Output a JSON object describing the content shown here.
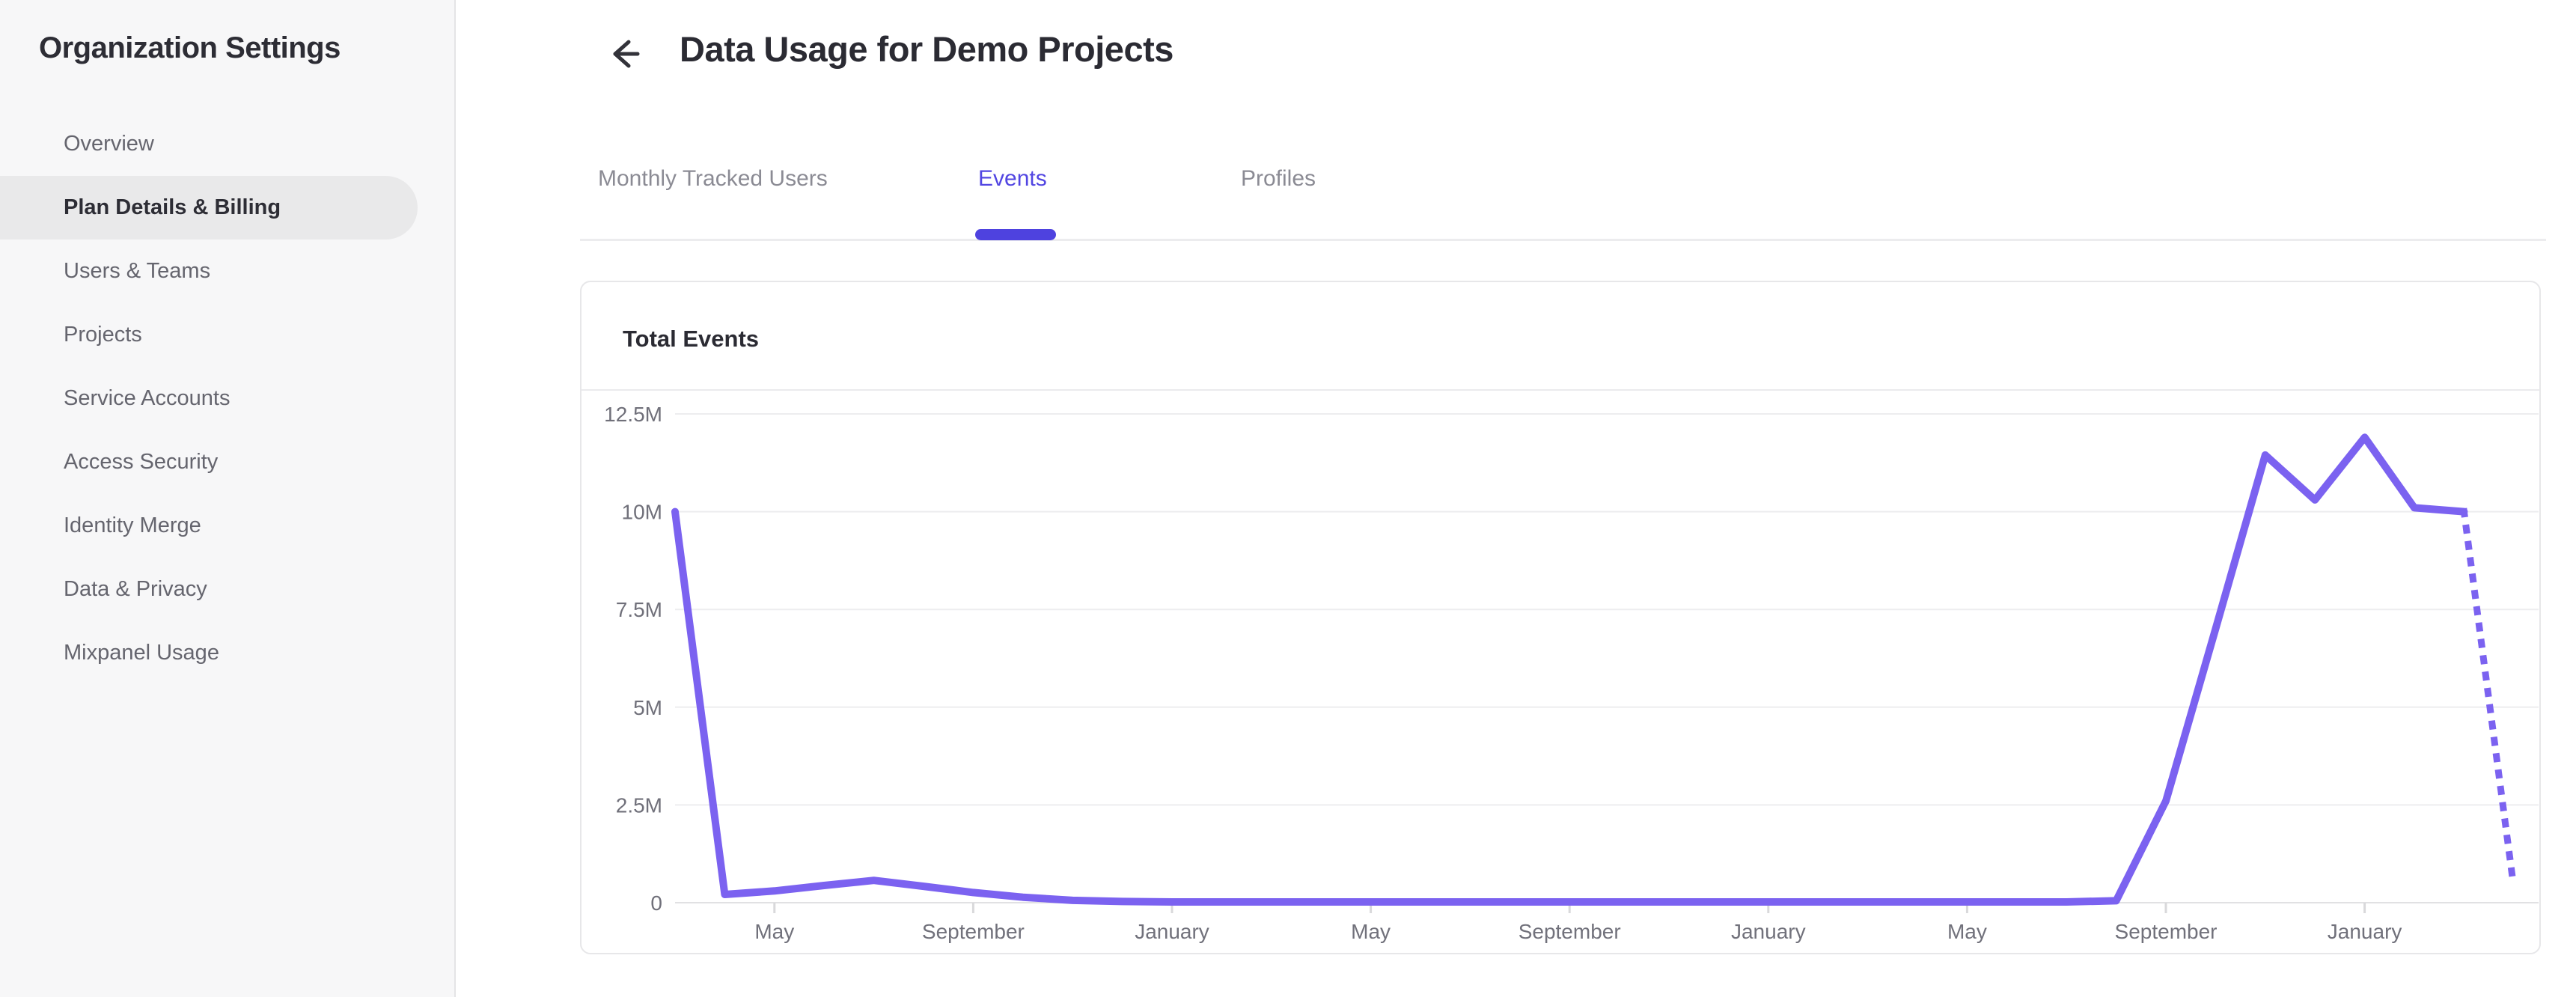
{
  "sidebar": {
    "title": "Organization Settings",
    "items": [
      {
        "label": "Overview",
        "active": false
      },
      {
        "label": "Plan Details & Billing",
        "active": true
      },
      {
        "label": "Users & Teams",
        "active": false
      },
      {
        "label": "Projects",
        "active": false
      },
      {
        "label": "Service Accounts",
        "active": false
      },
      {
        "label": "Access Security",
        "active": false
      },
      {
        "label": "Identity Merge",
        "active": false
      },
      {
        "label": "Data & Privacy",
        "active": false
      },
      {
        "label": "Mixpanel Usage",
        "active": false
      }
    ]
  },
  "header": {
    "title": "Data Usage for Demo Projects"
  },
  "tabs": [
    {
      "label": "Monthly Tracked Users",
      "active": false
    },
    {
      "label": "Events",
      "active": true
    },
    {
      "label": "Profiles",
      "active": false
    }
  ],
  "card": {
    "title": "Total Events"
  },
  "colors": {
    "line": "#7b62f0",
    "active_tab": "#5246e2",
    "tab_underline": "#4e42df",
    "gridline": "#ededef",
    "zero_line": "#e1e1e3",
    "tick": "#d9d9db"
  },
  "chart_data": {
    "type": "line",
    "title": "Total Events",
    "series_name": "Total Events",
    "xlabel": "",
    "ylabel": "",
    "grid": true,
    "legend": "none",
    "ylim": [
      0,
      13100000
    ],
    "y_tick_labels": [
      "12.5M",
      "10M",
      "7.5M",
      "5M",
      "2.5M",
      "0"
    ],
    "y_tick_values": [
      12500000,
      10000000,
      7500000,
      5000000,
      2500000,
      0
    ],
    "x_tick_labels": [
      "May",
      "September",
      "January",
      "May",
      "September",
      "January",
      "May",
      "September",
      "January"
    ],
    "x_tick_month_index": [
      2,
      6,
      10,
      14,
      18,
      22,
      26,
      30,
      34
    ],
    "months": [
      "Mar Y1",
      "Apr Y1",
      "May Y1",
      "Jun Y1",
      "Jul Y1",
      "Aug Y1",
      "Sep Y1",
      "Oct Y1",
      "Nov Y1",
      "Dec Y1",
      "Jan Y2",
      "Feb Y2",
      "Mar Y2",
      "Apr Y2",
      "May Y2",
      "Jun Y2",
      "Jul Y2",
      "Aug Y2",
      "Sep Y2",
      "Oct Y2",
      "Nov Y2",
      "Dec Y2",
      "Jan Y3",
      "Feb Y3",
      "Mar Y3",
      "Apr Y3",
      "May Y3",
      "Jun Y3",
      "Jul Y3",
      "Aug Y3",
      "Sep Y3",
      "Oct Y3",
      "Nov Y3",
      "Dec Y3",
      "Jan Y4",
      "Feb Y4",
      "Mar Y4"
    ],
    "values": [
      10000000,
      210000,
      300000,
      440000,
      570000,
      420000,
      260000,
      140000,
      60000,
      30000,
      20000,
      20000,
      20000,
      20000,
      20000,
      20000,
      20000,
      20000,
      20000,
      20000,
      20000,
      20000,
      20000,
      20000,
      20000,
      20000,
      20000,
      20000,
      20000,
      50000,
      2600000,
      7000000,
      11450000,
      10300000,
      11900000,
      10100000,
      10000000
    ],
    "projected_point": {
      "month": "Apr Y4",
      "value": 400000,
      "style": "dotted"
    }
  }
}
